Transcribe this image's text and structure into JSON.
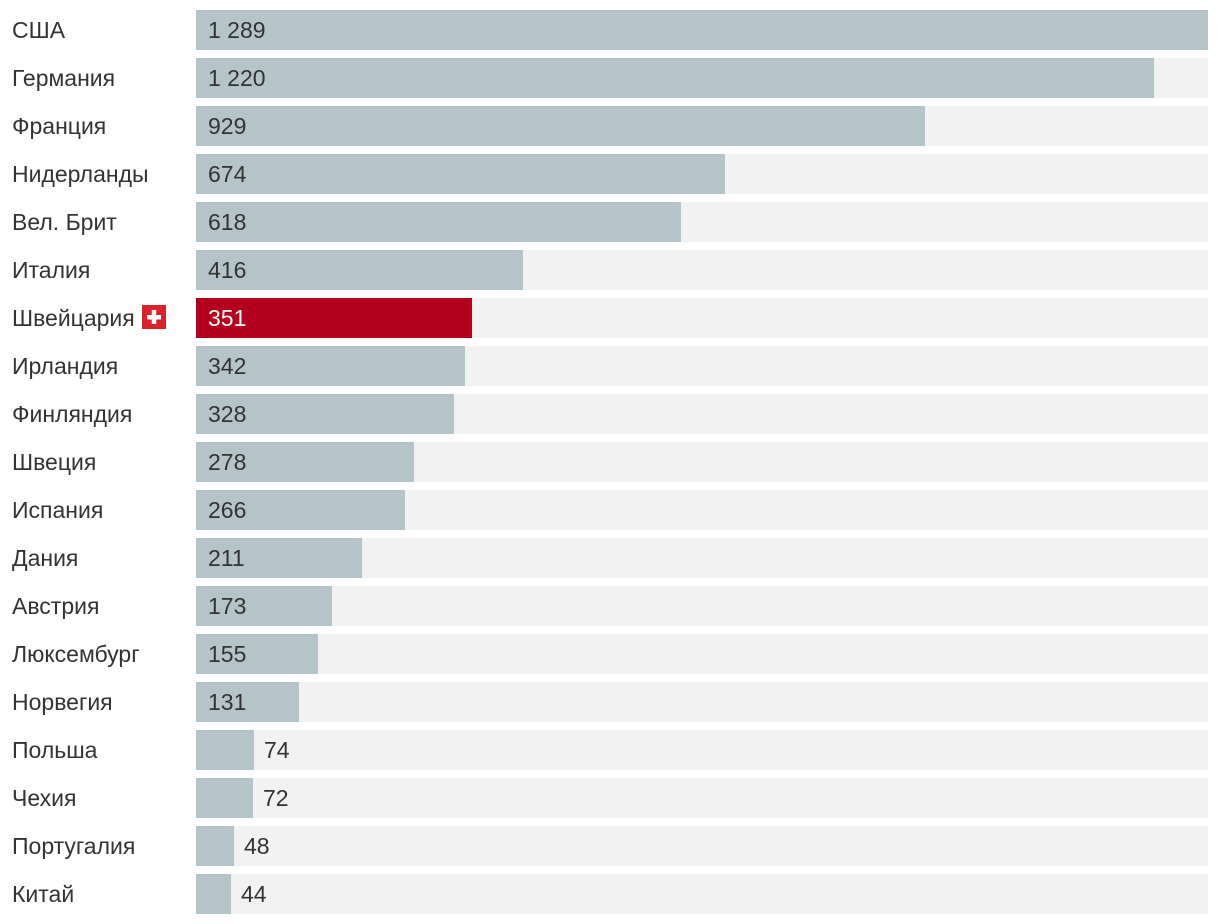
{
  "chart_data": {
    "type": "bar",
    "orientation": "horizontal",
    "categories": [
      "США",
      "Германия",
      "Франция",
      "Нидерланды",
      "Вел. Брит",
      "Италия",
      "Швейцария",
      "Ирландия",
      "Финляндия",
      "Швеция",
      "Испания",
      "Дания",
      "Австрия",
      "Люксембург",
      "Норвегия",
      "Польша",
      "Чехия",
      "Португалия",
      "Китай"
    ],
    "values": [
      1289,
      1220,
      929,
      674,
      618,
      416,
      351,
      342,
      328,
      278,
      266,
      211,
      173,
      155,
      131,
      74,
      72,
      48,
      44
    ],
    "value_labels": [
      "1 289",
      "1 220",
      "929",
      "674",
      "618",
      "416",
      "351",
      "342",
      "328",
      "278",
      "266",
      "211",
      "173",
      "155",
      "131",
      "74",
      "72",
      "48",
      "44"
    ],
    "highlight": "Швейцария",
    "highlight_icon": "swiss-flag-icon",
    "xlim": [
      0,
      1289
    ],
    "title": "",
    "xlabel": "",
    "ylabel": "",
    "grid": false,
    "colors": {
      "bar": "#b5c4c8",
      "highlight": "#b3001e",
      "track": "#f2f2f2",
      "label": "#333333",
      "value_text": "#333333",
      "highlight_text": "#ffffff",
      "flag": "#d8232a"
    }
  }
}
